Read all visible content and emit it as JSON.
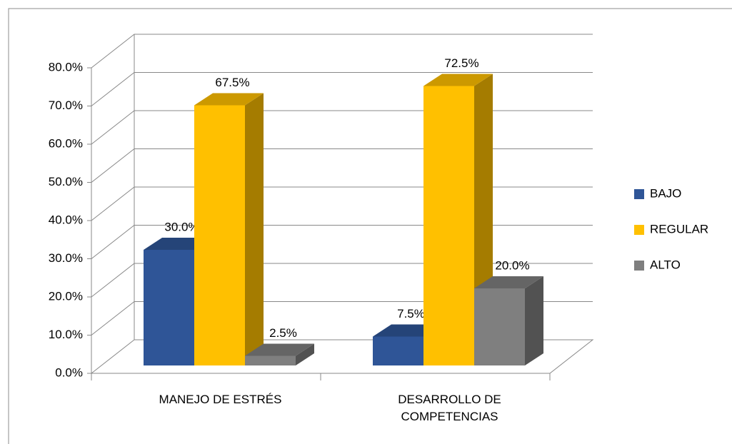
{
  "chart_data": {
    "type": "bar3d",
    "categories": [
      "MANEJO DE ESTRÉS",
      "DESARROLLO DE COMPETENCIAS"
    ],
    "series": [
      {
        "name": "BAJO",
        "color": "#2F5597",
        "values": [
          30,
          7.5
        ],
        "value_labels": [
          "30.0%",
          "7.5%"
        ]
      },
      {
        "name": "REGULAR",
        "color": "#FFC000",
        "values": [
          67.5,
          72.5
        ],
        "value_labels": [
          "67.5%",
          "72.5%"
        ]
      },
      {
        "name": "ALTO",
        "color": "#7F7F7F",
        "values": [
          2.5,
          20
        ],
        "value_labels": [
          "2.5%",
          "20.0%"
        ]
      }
    ],
    "ylim": [
      0,
      80
    ],
    "yticks": [
      {
        "value": 0,
        "label": "0.0%"
      },
      {
        "value": 10,
        "label": "10.0%"
      },
      {
        "value": 20,
        "label": "20.0%"
      },
      {
        "value": 30,
        "label": "30.0%"
      },
      {
        "value": 40,
        "label": "40.0%"
      },
      {
        "value": 50,
        "label": "50.0%"
      },
      {
        "value": 60,
        "label": "60.0%"
      },
      {
        "value": 70,
        "label": "70.0%"
      },
      {
        "value": 80,
        "label": "80.0%"
      }
    ],
    "grid": true,
    "legend": "right"
  }
}
